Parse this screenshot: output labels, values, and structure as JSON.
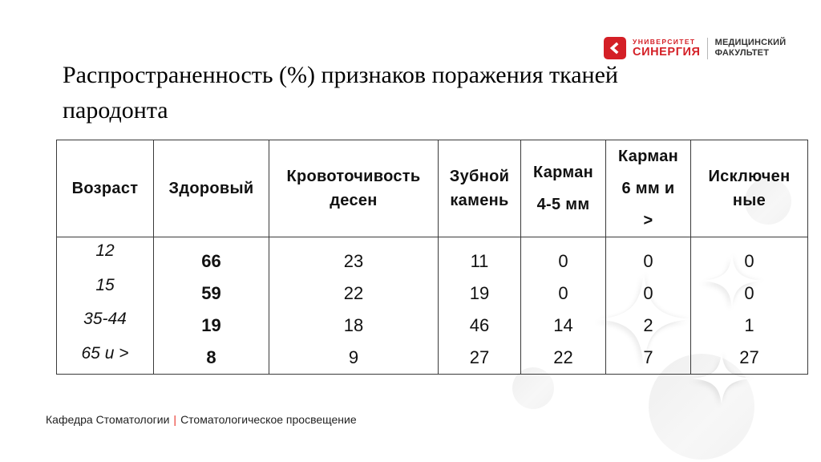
{
  "slide": {
    "title_lines": [
      "Распространенность (%) признаков поражения тканей",
      "пародонта"
    ]
  },
  "logo": {
    "university": "УНИВЕРСИТЕТ",
    "brand": "СИНЕРГИЯ",
    "faculty_line1": "МЕДИЦИНСКИЙ",
    "faculty_line2": "ФАКУЛЬТЕТ"
  },
  "table": {
    "columns": [
      {
        "key": "age",
        "header": "Возраст",
        "style": "age",
        "values": [
          "12",
          "15",
          "35-44",
          "65 и >"
        ]
      },
      {
        "key": "healthy",
        "header": "Здоровый",
        "style": "bold",
        "values": [
          "66",
          "59",
          "19",
          "8"
        ]
      },
      {
        "key": "bleeding-gums",
        "header": "Кровоточивость\nдесен",
        "style": "normal",
        "values": [
          "23",
          "22",
          "18",
          "9"
        ]
      },
      {
        "key": "tartar",
        "header": "Зубной\nкамень",
        "style": "normal",
        "values": [
          "11",
          "19",
          "46",
          "27"
        ]
      },
      {
        "key": "pocket-4-5mm",
        "header": "Карман\n4-5 мм",
        "style": "normal",
        "values": [
          "0",
          "0",
          "14",
          "22"
        ]
      },
      {
        "key": "pocket-6mm",
        "header": "Карман\n6 мм и\n>",
        "style": "normal",
        "values": [
          "0",
          "0",
          "2",
          "7"
        ]
      },
      {
        "key": "excluded",
        "header": "Исключен\nные",
        "style": "normal",
        "values": [
          "0",
          "0",
          "1",
          "27"
        ]
      }
    ]
  },
  "footer": {
    "department": "Кафедра Стоматологии",
    "separator": "|",
    "course": "Стоматологическое просвещение"
  },
  "colors": {
    "accent_red": "#d41f26",
    "footer_separator_red": "#e8352b",
    "table_border": "#3a3a3a",
    "decor_gray": "#f2f2f2"
  }
}
